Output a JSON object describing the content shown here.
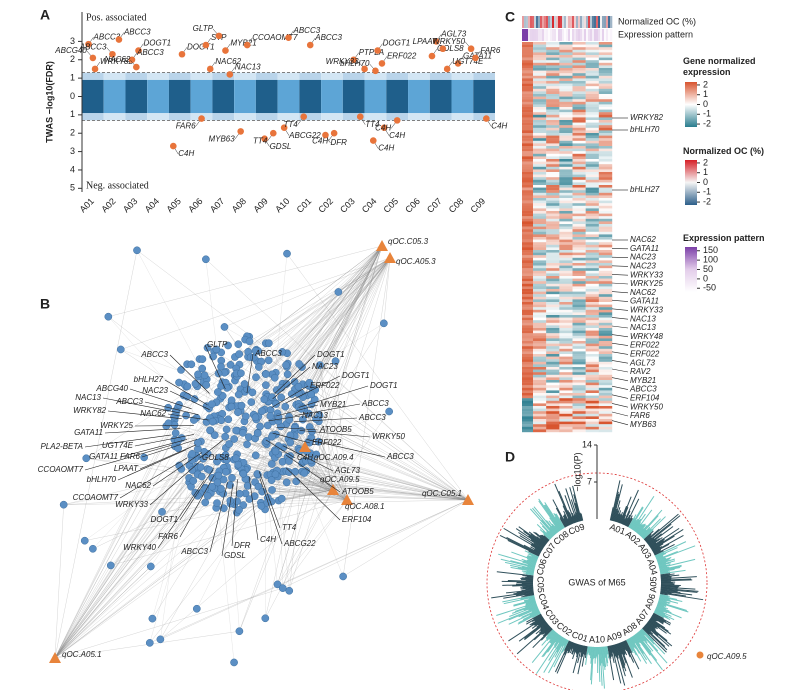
{
  "chart_data": [
    {
      "type": "manhattan",
      "panel": "A",
      "y_label": "TWAS −log10(FDR)",
      "top_note": "Pos. associated",
      "bottom_note": "Neg. associated",
      "categories": [
        "A01",
        "A02",
        "A03",
        "A04",
        "A05",
        "A06",
        "A07",
        "A08",
        "A09",
        "A10",
        "C01",
        "C02",
        "C03",
        "C04",
        "C05",
        "C06",
        "C07",
        "C08",
        "C09"
      ],
      "xlim": [
        0,
        19
      ],
      "ylim": [
        -5.2,
        4.6
      ],
      "yticks": [
        3,
        2,
        1,
        0,
        {
          "value": -1,
          "label": "1"
        },
        {
          "value": -2,
          "label": "2"
        },
        {
          "value": -3,
          "label": "3"
        },
        {
          "value": -4,
          "label": "4"
        },
        {
          "value": -5,
          "label": "5"
        }
      ],
      "threshold": 1.3,
      "colors": [
        "#1f5f8b",
        "#5da5d6"
      ],
      "highlight_color": "#e8743b",
      "highlights": {
        "genes": [
          "ABCC3",
          "ABCG40",
          "WRKY82",
          "ABCC3",
          "ABCC3",
          "DOGT1",
          "ABCC3",
          "NAC62",
          "C4H",
          "DOGT1",
          "FAR6",
          "STP",
          "NAC62",
          "GLTP",
          "MYB21",
          "NAC13",
          "MYB63",
          "CCOAOMT7",
          "GDSL",
          "TT4",
          "ABCG22",
          "ABCC3",
          "TT4",
          "ABCC3",
          "DFR",
          "C4H",
          "PTPLA",
          "TT4",
          "WRKY33",
          "DOGT1",
          "ERF022",
          "bHLH70",
          "C4H",
          "C4H",
          "C4H",
          "AGL73",
          "GOLS8",
          "LPAAT",
          "GATA11",
          "UGT74E",
          "WRKY50",
          "FAR6",
          "C4H"
        ],
        "x": [
          0.3,
          0.5,
          0.6,
          1.7,
          1.4,
          2.6,
          2.3,
          2.5,
          4.2,
          4.6,
          5.5,
          5.7,
          5.9,
          6.3,
          6.6,
          6.8,
          7.3,
          7.6,
          8.4,
          8.8,
          9.3,
          9.5,
          10.2,
          10.5,
          11.2,
          11.6,
          12.5,
          12.8,
          13.0,
          13.6,
          13.8,
          13.5,
          13.4,
          13.9,
          14.5,
          16.3,
          16.1,
          16.6,
          17.3,
          16.8,
          17.9,
          18.1,
          18.6
        ],
        "values": [
          2.85,
          2.1,
          1.5,
          3.1,
          2.3,
          2.5,
          2.0,
          1.6,
          -2.7,
          2.3,
          -1.2,
          2.8,
          1.5,
          3.3,
          2.5,
          1.2,
          -1.9,
          2.8,
          -2.3,
          -2.0,
          -1.7,
          3.2,
          -1.1,
          2.8,
          -2.1,
          -2.0,
          2.0,
          -1.1,
          1.5,
          2.5,
          1.8,
          1.4,
          -2.4,
          -1.7,
          -1.3,
          3.0,
          2.2,
          2.6,
          1.8,
          1.5,
          2.6,
          2.1,
          -1.2
        ]
      }
    },
    {
      "type": "network",
      "panel": "B",
      "qtl": [
        "qOC.C05.3",
        "qOC.A05.3",
        "qOC.A09.4",
        "qOC.A09.5",
        "qOC.A08.1",
        "qOC.C05.1",
        "qOC.A05.1"
      ],
      "genes": [
        "ABCC3",
        "GLTP",
        "ABCC3",
        "DOGT1",
        "bHLH27",
        "NAC23",
        "ABCG40",
        "NAC23",
        "ERF022",
        "DOGT1",
        "DOGT1",
        "NAC13",
        "ABCC3",
        "MYB21",
        "ABCC3",
        "WRKY82",
        "NAC62",
        "NAC13",
        "ABCC3",
        "GATA11",
        "WRKY25",
        "ATOOB5",
        "WRKY50",
        "PLA2-BETA",
        "UGT74E",
        "ERF022",
        "GATA11",
        "FAR6",
        "ABCC3",
        "CCOAOMT7",
        "LPAAT",
        "AGL73",
        "bHLH70",
        "NAC62",
        "ATOOB5",
        "CCOAOMT7",
        "WRKY33",
        "DOGT1",
        "ERF104",
        "FAR6",
        "ABCG22",
        "C4H",
        "WRKY40",
        "ABCC3",
        "DFR",
        "GDSL",
        "TT4",
        "C4H",
        "GOLS8"
      ],
      "node_color": "#5b8fc4",
      "qtl_color": "#e8843b"
    },
    {
      "type": "heatmap",
      "panel": "C",
      "annotation_rows": [
        "Normalized OC (%)",
        "Expression pattern"
      ],
      "legends": [
        {
          "title": "Gene normalized expression",
          "ticks": [
            2,
            1,
            0,
            -1,
            -2
          ],
          "lim": [
            -2.3,
            2.3
          ],
          "colors": [
            "#2a7d8f",
            "#ffffff",
            "#d8552f"
          ]
        },
        {
          "title": "Normalized OC (%)",
          "ticks": [
            2,
            1,
            0,
            -1,
            -2
          ],
          "lim": [
            -2.3,
            2.3
          ],
          "colors": [
            "#2d5f8a",
            "#f5f5f5",
            "#d61f26"
          ]
        },
        {
          "title": "Expression pattern",
          "ticks": [
            150,
            100,
            50,
            0,
            -50
          ],
          "lim": [
            -70,
            170
          ],
          "colors": [
            "#ffffff",
            "#e3cdea",
            "#7b3fa8"
          ]
        }
      ],
      "genes": [
        "WRKY82",
        "bHLH70",
        "bHLH27",
        "NAC62",
        "GATA11",
        "NAC23",
        "NAC23",
        "WRKY33",
        "WRKY25",
        "NAC62",
        "GATA11",
        "WRKY33",
        "NAC13",
        "NAC13",
        "WRKY48",
        "ERF022",
        "ERF022",
        "AGL73",
        "RAV2",
        "MYB21",
        "ABCC3",
        "ERF104",
        "WRKY50",
        "FAR6",
        "MYB63"
      ]
    },
    {
      "type": "circular-manhattan",
      "panel": "D",
      "center_label": "GWAS of M65",
      "axis_label": "−log10(P)",
      "ylim": [
        0,
        14
      ],
      "yticks": [
        7,
        14
      ],
      "categories": [
        "A01",
        "A02",
        "A03",
        "A04",
        "A05",
        "A06",
        "A07",
        "A08",
        "A09",
        "A10",
        "C01",
        "C02",
        "C03",
        "C04",
        "C05",
        "C06",
        "C07",
        "C08",
        "C09"
      ],
      "colors": [
        "#2f4f5a",
        "#6fc7c0"
      ],
      "highlight": "qOC.A09.5",
      "highlight_color": "#e8843b"
    }
  ]
}
